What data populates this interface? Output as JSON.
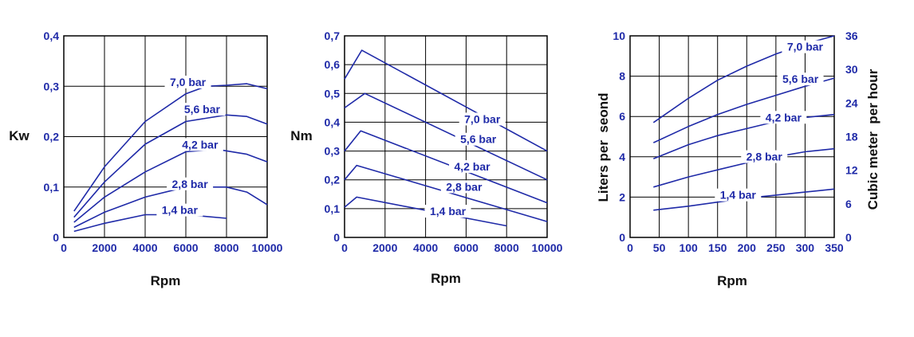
{
  "colors": {
    "curve": "#1f2aa8",
    "tick": "#1f2aa8",
    "grid": "#000000",
    "title": "#111111"
  },
  "chart_data": [
    {
      "type": "line",
      "xlabel": "Rpm",
      "ylabel": "Kw",
      "xlim": [
        0,
        10000
      ],
      "ylim": [
        0,
        0.4
      ],
      "x_ticks": [
        "0",
        "2000",
        "4000",
        "6000",
        "8000",
        "10000"
      ],
      "y_ticks": [
        "0",
        "0,1",
        "0,2",
        "0,3",
        "0,4"
      ],
      "grid": true,
      "series": [
        {
          "name": "7,0 bar",
          "label_at": [
            6100,
            0.302
          ],
          "points": [
            [
              500,
              0.052
            ],
            [
              2000,
              0.14
            ],
            [
              4000,
              0.23
            ],
            [
              6000,
              0.285
            ],
            [
              7000,
              0.3
            ],
            [
              8000,
              0.302
            ],
            [
              9000,
              0.305
            ],
            [
              10000,
              0.295
            ]
          ]
        },
        {
          "name": "5,6 bar",
          "label_at": [
            6800,
            0.248
          ],
          "points": [
            [
              500,
              0.04
            ],
            [
              2000,
              0.11
            ],
            [
              4000,
              0.185
            ],
            [
              6000,
              0.23
            ],
            [
              8000,
              0.243
            ],
            [
              9000,
              0.24
            ],
            [
              10000,
              0.225
            ]
          ]
        },
        {
          "name": "4,2 bar",
          "label_at": [
            6700,
            0.178
          ],
          "points": [
            [
              500,
              0.03
            ],
            [
              2000,
              0.08
            ],
            [
              4000,
              0.13
            ],
            [
              6000,
              0.17
            ],
            [
              7500,
              0.175
            ],
            [
              9000,
              0.165
            ],
            [
              10000,
              0.15
            ]
          ]
        },
        {
          "name": "2,8 bar",
          "label_at": [
            6200,
            0.1
          ],
          "points": [
            [
              500,
              0.02
            ],
            [
              2000,
              0.05
            ],
            [
              4000,
              0.08
            ],
            [
              6000,
              0.1
            ],
            [
              8000,
              0.1
            ],
            [
              9000,
              0.09
            ],
            [
              10000,
              0.065
            ]
          ]
        },
        {
          "name": "1,4 bar",
          "label_at": [
            5700,
            0.048
          ],
          "points": [
            [
              500,
              0.012
            ],
            [
              2000,
              0.028
            ],
            [
              4000,
              0.045
            ],
            [
              6000,
              0.045
            ],
            [
              8000,
              0.038
            ]
          ]
        }
      ]
    },
    {
      "type": "line",
      "xlabel": "Rpm",
      "ylabel": "Nm",
      "xlim": [
        0,
        10000
      ],
      "ylim": [
        0,
        0.7
      ],
      "x_ticks": [
        "0",
        "2000",
        "4000",
        "6000",
        "8000",
        "10000"
      ],
      "y_ticks": [
        "0",
        "0,1",
        "0,2",
        "0,3",
        "0,4",
        "0,5",
        "0,6",
        "0,7"
      ],
      "grid": true,
      "series": [
        {
          "name": "7,0 bar",
          "label_at": [
            6800,
            0.4
          ],
          "points": [
            [
              0,
              0.55
            ],
            [
              850,
              0.65
            ],
            [
              10000,
              0.3
            ]
          ]
        },
        {
          "name": "5,6 bar",
          "label_at": [
            6600,
            0.33
          ],
          "points": [
            [
              0,
              0.45
            ],
            [
              1000,
              0.5
            ],
            [
              10000,
              0.2
            ]
          ]
        },
        {
          "name": "4,2 bar",
          "label_at": [
            6300,
            0.235
          ],
          "points": [
            [
              0,
              0.3
            ],
            [
              800,
              0.37
            ],
            [
              10000,
              0.12
            ]
          ]
        },
        {
          "name": "2,8 bar",
          "label_at": [
            5900,
            0.165
          ],
          "points": [
            [
              0,
              0.2
            ],
            [
              600,
              0.25
            ],
            [
              10000,
              0.055
            ]
          ]
        },
        {
          "name": "1,4 bar",
          "label_at": [
            5100,
            0.08
          ],
          "points": [
            [
              0,
              0.105
            ],
            [
              600,
              0.14
            ],
            [
              8000,
              0.04
            ]
          ]
        }
      ]
    },
    {
      "type": "line",
      "xlabel": "Rpm",
      "ylabel": "Liters per  seond",
      "ylabel2": "Cubic meter  per hour",
      "xlim": [
        0,
        350
      ],
      "ylim": [
        0,
        10
      ],
      "y2lim": [
        0,
        36
      ],
      "x_ticks": [
        "0",
        "50",
        "100",
        "150",
        "200",
        "250",
        "300",
        "350"
      ],
      "y_ticks": [
        "0",
        "2",
        "4",
        "6",
        "8",
        "10"
      ],
      "y2_ticks": [
        "0",
        "6",
        "12",
        "18",
        "24",
        "30",
        "36"
      ],
      "grid": true,
      "series": [
        {
          "name": "7,0 bar",
          "label_at": [
            300,
            9.3
          ],
          "points": [
            [
              40,
              5.7
            ],
            [
              100,
              6.9
            ],
            [
              150,
              7.8
            ],
            [
              200,
              8.5
            ],
            [
              250,
              9.1
            ],
            [
              300,
              9.6
            ],
            [
              350,
              10.0
            ]
          ]
        },
        {
          "name": "5,6 bar",
          "label_at": [
            292,
            7.7
          ],
          "points": [
            [
              40,
              4.7
            ],
            [
              100,
              5.5
            ],
            [
              150,
              6.1
            ],
            [
              200,
              6.6
            ],
            [
              250,
              7.05
            ],
            [
              300,
              7.5
            ],
            [
              350,
              7.9
            ]
          ]
        },
        {
          "name": "4,2 bar",
          "label_at": [
            263,
            5.8
          ],
          "points": [
            [
              40,
              3.9
            ],
            [
              100,
              4.6
            ],
            [
              150,
              5.05
            ],
            [
              200,
              5.4
            ],
            [
              250,
              5.75
            ],
            [
              300,
              5.95
            ],
            [
              350,
              6.1
            ]
          ]
        },
        {
          "name": "2,8 bar",
          "label_at": [
            230,
            3.85
          ],
          "points": [
            [
              40,
              2.5
            ],
            [
              100,
              3.0
            ],
            [
              150,
              3.35
            ],
            [
              200,
              3.7
            ],
            [
              250,
              4.0
            ],
            [
              300,
              4.25
            ],
            [
              350,
              4.4
            ]
          ]
        },
        {
          "name": "1,4 bar",
          "label_at": [
            185,
            1.95
          ],
          "points": [
            [
              40,
              1.35
            ],
            [
              100,
              1.55
            ],
            [
              150,
              1.75
            ],
            [
              200,
              1.95
            ],
            [
              250,
              2.1
            ],
            [
              300,
              2.25
            ],
            [
              350,
              2.4
            ]
          ]
        }
      ]
    }
  ]
}
